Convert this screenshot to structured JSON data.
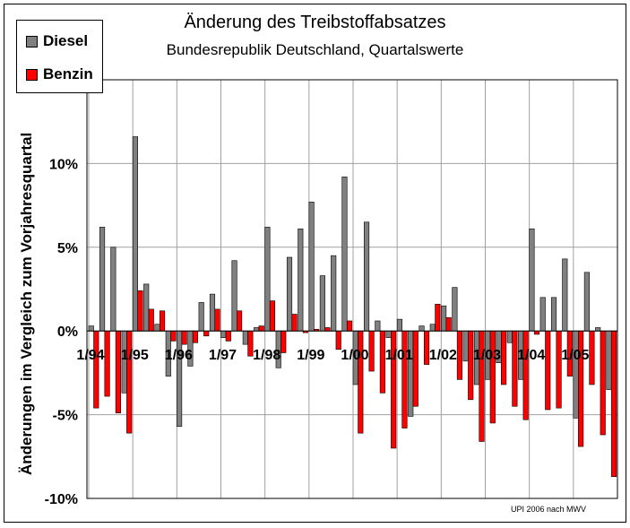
{
  "chart_data": {
    "type": "bar",
    "title": "Änderung des Treibstoffabsatzes",
    "subtitle": "Bundesrepublik Deutschland, Quartalswerte",
    "ylabel": "Änderungen im Vergleich zum Vorjahresquartal",
    "xlabel": "",
    "source": "UPI 2006 nach MWV",
    "ylim": [
      -10,
      15
    ],
    "yticks": [
      {
        "value": 10,
        "label": "10%"
      },
      {
        "value": 5,
        "label": "5%"
      },
      {
        "value": 0,
        "label": "0%"
      },
      {
        "value": -5,
        "label": "-5%"
      },
      {
        "value": -10,
        "label": "-10%"
      }
    ],
    "x_tick_labels": [
      "1/94",
      "1/95",
      "1/96",
      "1/97",
      "1/98",
      "1/99",
      "1/00",
      "1/01",
      "1/02",
      "1/03",
      "1/04",
      "1/05"
    ],
    "grid": true,
    "legend_position": "top-left",
    "quarters_per_year": 4,
    "colors": {
      "Diesel": "#808080",
      "Benzin": "#ff0000"
    },
    "series": [
      {
        "name": "Diesel",
        "values": [
          0.3,
          6.2,
          5.0,
          -3.7,
          11.6,
          2.8,
          0.4,
          -2.7,
          -5.7,
          -2.1,
          1.7,
          2.2,
          -0.4,
          4.2,
          -0.8,
          0.2,
          6.2,
          -2.2,
          4.4,
          6.1,
          7.7,
          3.3,
          4.5,
          9.2,
          -3.2,
          6.5,
          0.6,
          -0.4,
          0.7,
          -5.1,
          0.3,
          0.4,
          1.5,
          2.6,
          -1.8,
          -3.2,
          -2.9,
          -1.9,
          -0.7,
          -2.9,
          6.1,
          2.0,
          2.0,
          4.3,
          -5.2,
          3.5,
          0.2,
          -3.5
        ]
      },
      {
        "name": "Benzin",
        "values": [
          -4.6,
          -3.9,
          -4.9,
          -6.1,
          2.4,
          1.3,
          1.2,
          -0.6,
          -0.8,
          -0.7,
          -0.3,
          1.3,
          -0.6,
          1.2,
          -1.5,
          0.3,
          1.8,
          -1.3,
          1.0,
          -0.1,
          0.1,
          0.2,
          -1.1,
          0.6,
          -6.1,
          -2.4,
          -3.7,
          -7.0,
          -5.8,
          -4.5,
          -2.0,
          1.6,
          0.8,
          -2.9,
          -4.1,
          -6.6,
          -5.5,
          -3.2,
          -4.5,
          -5.3,
          -0.2,
          -4.7,
          -4.6,
          -2.7,
          -6.9,
          -3.2,
          -6.2,
          -8.7
        ]
      }
    ]
  }
}
